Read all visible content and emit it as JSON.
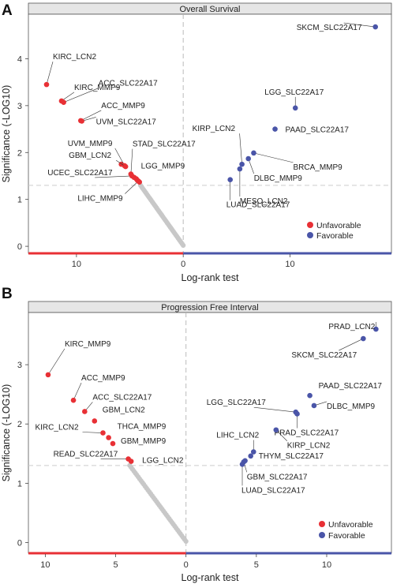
{
  "chart_data": [
    {
      "type": "scatter",
      "panel_letter": "A",
      "title": "Overall Survival",
      "xlabel": "Log-rank test",
      "ylabel": "Significance (-LOG10)",
      "xlim": [
        -14.5,
        19.5
      ],
      "ylim": [
        -0.15,
        4.95
      ],
      "x_ticks": [
        {
          "v": -10,
          "label": "10"
        },
        {
          "v": 0,
          "label": "0"
        },
        {
          "v": 10,
          "label": "10"
        }
      ],
      "y_ticks": [
        0,
        1,
        2,
        3,
        4
      ],
      "threshold_y": 1.3,
      "legend": {
        "placement": "bottom-right",
        "unfavorable": "Unfavorable",
        "favorable": "Favorable"
      },
      "colors": {
        "unfavorable": "#e83035",
        "favorable": "#4a55a8",
        "nonsig": "#c8c8c8",
        "strip": "#e6e6e6"
      },
      "labeled_points": [
        {
          "label": "KIRC_LCN2",
          "x": -12.8,
          "y": 3.45,
          "group": "unfavorable"
        },
        {
          "label": "KIRC_MMP9",
          "x": -11.4,
          "y": 3.1,
          "group": "unfavorable"
        },
        {
          "label": "ACC_SLC22A17",
          "x": -11.2,
          "y": 3.07,
          "group": "unfavorable"
        },
        {
          "label": "ACC_MMP9",
          "x": -9.6,
          "y": 2.68,
          "group": "unfavorable"
        },
        {
          "label": "UVM_SLC22A17",
          "x": -9.5,
          "y": 2.67,
          "group": "unfavorable"
        },
        {
          "label": "UVM_MMP9",
          "x": -5.5,
          "y": 1.72,
          "group": "unfavorable"
        },
        {
          "label": "GBM_LCN2",
          "x": -5.4,
          "y": 1.7,
          "group": "unfavorable"
        },
        {
          "label": "STAD_SLC22A17",
          "x": -4.9,
          "y": 1.54,
          "group": "unfavorable"
        },
        {
          "label": "UCEC_SLC22A17",
          "x": -4.8,
          "y": 1.5,
          "group": "unfavorable"
        },
        {
          "label": "LGG_MMP9",
          "x": -4.4,
          "y": 1.44,
          "group": "unfavorable"
        },
        {
          "label": "LIHC_MMP9",
          "x": -4.2,
          "y": 1.39,
          "group": "unfavorable"
        },
        {
          "label": "SKCM_SLC22A17",
          "x": 18.0,
          "y": 4.68,
          "group": "favorable"
        },
        {
          "label": "LGG_SLC22A17",
          "x": 10.5,
          "y": 2.95,
          "group": "favorable"
        },
        {
          "label": "PAAD_SLC22A17",
          "x": 8.6,
          "y": 2.5,
          "group": "favorable"
        },
        {
          "label": "KIRP_LCN2",
          "x": 5.5,
          "y": 1.75,
          "group": "favorable"
        },
        {
          "label": "BRCA_MMP9",
          "x": 6.6,
          "y": 1.99,
          "group": "favorable"
        },
        {
          "label": "DLBC_MMP9",
          "x": 6.1,
          "y": 1.87,
          "group": "favorable"
        },
        {
          "label": "MESO_LCN2",
          "x": 5.3,
          "y": 1.65,
          "group": "favorable"
        },
        {
          "label": "LUAD_SLC22A17",
          "x": 4.4,
          "y": 1.42,
          "group": "favorable"
        }
      ],
      "extra_points": [
        {
          "x": -5.8,
          "y": 1.75,
          "group": "unfavorable"
        },
        {
          "x": -4.6,
          "y": 1.47,
          "group": "unfavorable"
        },
        {
          "x": -4.3,
          "y": 1.41,
          "group": "unfavorable"
        },
        {
          "x": -4.1,
          "y": 1.37,
          "group": "unfavorable"
        }
      ]
    },
    {
      "type": "scatter",
      "panel_letter": "B",
      "title": "Progression Free Interval",
      "xlabel": "Log-rank test",
      "ylabel": "Significance (-LOG10)",
      "xlim": [
        -11.2,
        14.6
      ],
      "ylim": [
        -0.18,
        3.88
      ],
      "x_ticks": [
        {
          "v": -10,
          "label": "10"
        },
        {
          "v": -5,
          "label": "5"
        },
        {
          "v": 0,
          "label": "0"
        },
        {
          "v": 5,
          "label": "5"
        },
        {
          "v": 10,
          "label": "10"
        }
      ],
      "y_ticks": [
        0,
        1,
        2,
        3
      ],
      "threshold_y": 1.3,
      "legend": {
        "placement": "bottom-right",
        "unfavorable": "Unfavorable",
        "favorable": "Favorable"
      },
      "colors": {
        "unfavorable": "#e83035",
        "favorable": "#4a55a8",
        "nonsig": "#c8c8c8",
        "strip": "#e6e6e6"
      },
      "labeled_points": [
        {
          "label": "KIRC_MMP9",
          "x": -9.8,
          "y": 2.83,
          "group": "unfavorable"
        },
        {
          "label": "ACC_MMP9",
          "x": -8.0,
          "y": 2.4,
          "group": "unfavorable"
        },
        {
          "label": "ACC_SLC22A17",
          "x": -7.2,
          "y": 2.21,
          "group": "unfavorable"
        },
        {
          "label": "GBM_LCN2",
          "x": -6.5,
          "y": 2.05,
          "group": "unfavorable"
        },
        {
          "label": "KIRC_LCN2",
          "x": -5.9,
          "y": 1.85,
          "group": "unfavorable"
        },
        {
          "label": "THCA_MMP9",
          "x": -5.5,
          "y": 1.77,
          "group": "unfavorable"
        },
        {
          "label": "GBM_MMP9",
          "x": -5.2,
          "y": 1.67,
          "group": "unfavorable"
        },
        {
          "label": "READ_SLC22A17",
          "x": -4.1,
          "y": 1.41,
          "group": "unfavorable"
        },
        {
          "label": "LGG_LCN2",
          "x": -3.9,
          "y": 1.37,
          "group": "unfavorable"
        },
        {
          "label": "PRAD_LCN2",
          "x": 13.5,
          "y": 3.6,
          "group": "favorable"
        },
        {
          "label": "SKCM_SLC22A17",
          "x": 12.6,
          "y": 3.44,
          "group": "favorable"
        },
        {
          "label": "PAAD_SLC22A17",
          "x": 8.8,
          "y": 2.48,
          "group": "favorable"
        },
        {
          "label": "LGG_SLC22A17",
          "x": 7.8,
          "y": 2.2,
          "group": "favorable"
        },
        {
          "label": "DLBC_MMP9",
          "x": 9.1,
          "y": 2.31,
          "group": "favorable"
        },
        {
          "label": "PRAD_SLC22A17",
          "x": 7.9,
          "y": 2.17,
          "group": "favorable"
        },
        {
          "label": "KIRP_LCN2",
          "x": 6.4,
          "y": 1.9,
          "group": "favorable"
        },
        {
          "label": "LIHC_LCN2",
          "x": 4.8,
          "y": 1.53,
          "group": "favorable"
        },
        {
          "label": "THYM_SLC22A17",
          "x": 4.6,
          "y": 1.46,
          "group": "favorable"
        },
        {
          "label": "GBM_SLC22A17",
          "x": 4.1,
          "y": 1.36,
          "group": "favorable"
        },
        {
          "label": "LUAD_SLC22A17",
          "x": 4.0,
          "y": 1.32,
          "group": "favorable"
        }
      ],
      "extra_points": [
        {
          "x": 4.2,
          "y": 1.38,
          "group": "favorable"
        }
      ]
    }
  ]
}
